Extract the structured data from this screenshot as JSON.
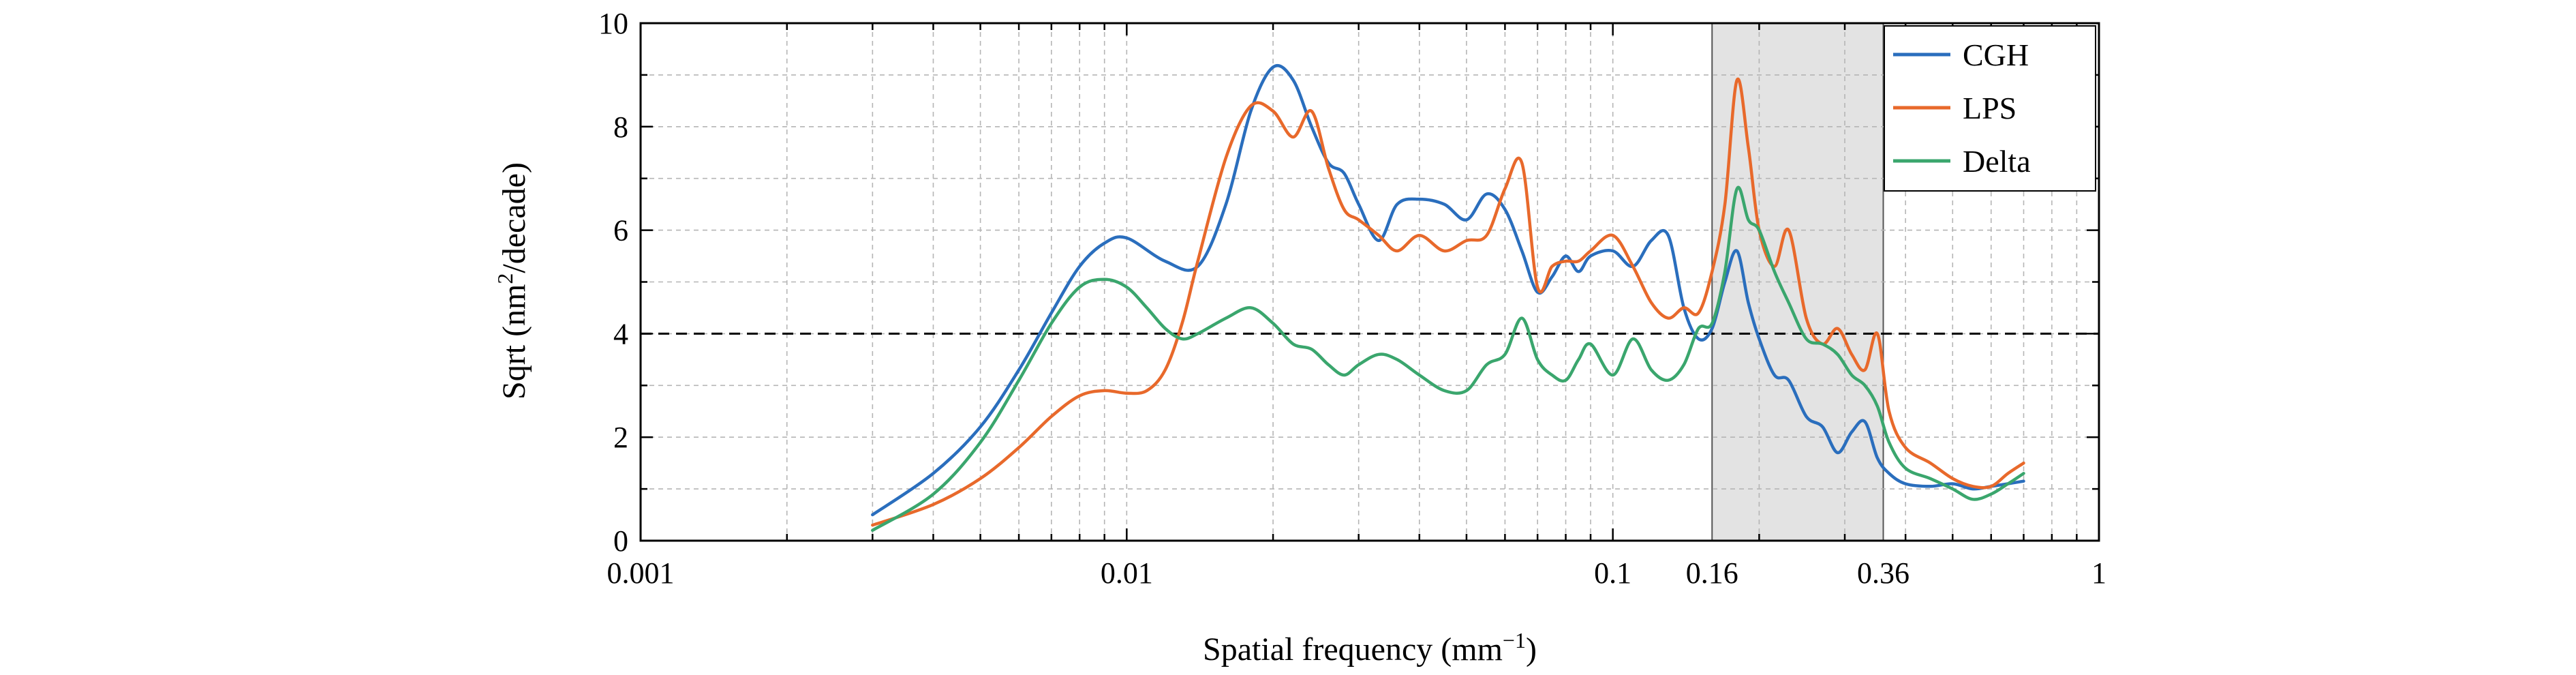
{
  "chart_data": {
    "type": "line",
    "title": "",
    "xlabel_main": "Spatial frequency (mm",
    "xlabel_sup": "−1",
    "xlabel_end": ")",
    "ylabel_main": "Sqrt (nm",
    "ylabel_sup": "2",
    "ylabel_end": "/decade)",
    "x_scale": "log",
    "xlim": [
      0.001,
      1
    ],
    "ylim": [
      0,
      10
    ],
    "x_tick_values": [
      0.001,
      0.01,
      0.1,
      0.16,
      0.36,
      1
    ],
    "x_tick_labels": [
      "0.001",
      "0.01",
      "0.1",
      "0.16",
      "0.36",
      "1"
    ],
    "y_tick_values": [
      0,
      2,
      4,
      6,
      8,
      10
    ],
    "y_tick_labels": [
      "0",
      "2",
      "4",
      "6",
      "8",
      "10"
    ],
    "grid": true,
    "legend_position": "top-right",
    "highlight_band": {
      "x_start": 0.16,
      "x_end": 0.36,
      "color": "#e3e3e3"
    },
    "reference_line": {
      "y": 4,
      "style": "dashed",
      "color": "#000000"
    },
    "series": [
      {
        "name": "CGH",
        "color": "#2a6ebd",
        "x": [
          0.003,
          0.004,
          0.005,
          0.006,
          0.007,
          0.008,
          0.009,
          0.01,
          0.012,
          0.014,
          0.016,
          0.018,
          0.02,
          0.022,
          0.024,
          0.026,
          0.028,
          0.03,
          0.033,
          0.036,
          0.04,
          0.045,
          0.05,
          0.055,
          0.06,
          0.065,
          0.07,
          0.075,
          0.08,
          0.085,
          0.09,
          0.1,
          0.11,
          0.12,
          0.13,
          0.14,
          0.15,
          0.16,
          0.17,
          0.18,
          0.19,
          0.2,
          0.215,
          0.23,
          0.25,
          0.27,
          0.29,
          0.31,
          0.33,
          0.35,
          0.37,
          0.4,
          0.45,
          0.5,
          0.55,
          0.6,
          0.65,
          0.7
        ],
        "y": [
          0.5,
          1.3,
          2.2,
          3.3,
          4.4,
          5.3,
          5.75,
          5.85,
          5.4,
          5.3,
          6.5,
          8.3,
          9.15,
          8.9,
          8.0,
          7.3,
          7.1,
          6.5,
          5.8,
          6.5,
          6.6,
          6.5,
          6.2,
          6.7,
          6.4,
          5.6,
          4.8,
          5.1,
          5.5,
          5.2,
          5.5,
          5.6,
          5.3,
          5.8,
          5.9,
          4.5,
          3.9,
          4.1,
          5.0,
          5.6,
          4.6,
          3.9,
          3.2,
          3.1,
          2.4,
          2.2,
          1.7,
          2.1,
          2.3,
          1.6,
          1.3,
          1.1,
          1.05,
          1.1,
          1.0,
          1.05,
          1.1,
          1.15
        ]
      },
      {
        "name": "LPS",
        "color": "#e8692b",
        "x": [
          0.003,
          0.004,
          0.005,
          0.006,
          0.007,
          0.008,
          0.009,
          0.01,
          0.011,
          0.012,
          0.013,
          0.014,
          0.016,
          0.018,
          0.02,
          0.022,
          0.024,
          0.026,
          0.028,
          0.03,
          0.033,
          0.036,
          0.04,
          0.045,
          0.05,
          0.055,
          0.06,
          0.065,
          0.07,
          0.075,
          0.08,
          0.085,
          0.09,
          0.1,
          0.11,
          0.12,
          0.13,
          0.14,
          0.15,
          0.16,
          0.17,
          0.18,
          0.19,
          0.2,
          0.215,
          0.23,
          0.25,
          0.27,
          0.29,
          0.31,
          0.33,
          0.35,
          0.37,
          0.4,
          0.45,
          0.5,
          0.55,
          0.6,
          0.65,
          0.7
        ],
        "y": [
          0.3,
          0.7,
          1.2,
          1.8,
          2.4,
          2.8,
          2.9,
          2.85,
          2.9,
          3.3,
          4.2,
          5.4,
          7.4,
          8.4,
          8.3,
          7.8,
          8.3,
          7.2,
          6.4,
          6.2,
          5.9,
          5.6,
          5.9,
          5.6,
          5.8,
          5.9,
          6.8,
          7.3,
          4.9,
          5.3,
          5.4,
          5.4,
          5.6,
          5.9,
          5.3,
          4.6,
          4.3,
          4.5,
          4.4,
          5.2,
          6.5,
          8.9,
          7.6,
          6.0,
          5.3,
          6.0,
          4.3,
          3.8,
          4.1,
          3.6,
          3.3,
          4.0,
          2.5,
          1.8,
          1.5,
          1.2,
          1.05,
          1.05,
          1.3,
          1.5
        ]
      },
      {
        "name": "Delta",
        "color": "#3aa66d",
        "x": [
          0.003,
          0.004,
          0.005,
          0.006,
          0.007,
          0.008,
          0.009,
          0.01,
          0.011,
          0.012,
          0.013,
          0.014,
          0.016,
          0.018,
          0.02,
          0.022,
          0.024,
          0.026,
          0.028,
          0.03,
          0.033,
          0.036,
          0.04,
          0.045,
          0.05,
          0.055,
          0.06,
          0.065,
          0.07,
          0.075,
          0.08,
          0.085,
          0.09,
          0.1,
          0.11,
          0.12,
          0.13,
          0.14,
          0.15,
          0.16,
          0.17,
          0.18,
          0.19,
          0.2,
          0.215,
          0.23,
          0.25,
          0.27,
          0.29,
          0.31,
          0.33,
          0.35,
          0.37,
          0.4,
          0.45,
          0.5,
          0.55,
          0.6,
          0.65,
          0.7
        ],
        "y": [
          0.2,
          0.9,
          1.9,
          3.1,
          4.2,
          4.9,
          5.05,
          4.9,
          4.5,
          4.1,
          3.9,
          4.0,
          4.3,
          4.5,
          4.2,
          3.8,
          3.7,
          3.4,
          3.2,
          3.4,
          3.6,
          3.5,
          3.2,
          2.9,
          2.9,
          3.4,
          3.6,
          4.3,
          3.5,
          3.2,
          3.1,
          3.5,
          3.8,
          3.2,
          3.9,
          3.3,
          3.1,
          3.4,
          4.1,
          4.2,
          5.2,
          6.8,
          6.2,
          6.0,
          5.2,
          4.6,
          3.9,
          3.8,
          3.6,
          3.2,
          3.0,
          2.6,
          1.9,
          1.4,
          1.2,
          1.0,
          0.8,
          0.9,
          1.1,
          1.3
        ]
      }
    ]
  }
}
